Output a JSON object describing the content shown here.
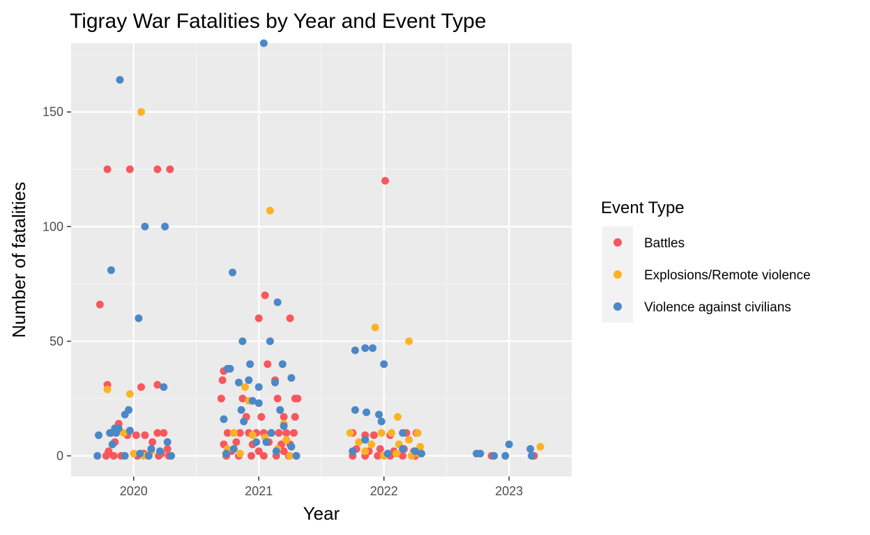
{
  "chart_data": {
    "type": "scatter",
    "title": "Tigray War Fatalities by Year and Event Type",
    "xlabel": "Year",
    "ylabel": "Number of fatalities",
    "x_categories": [
      "2020",
      "2021",
      "2022",
      "2023"
    ],
    "xlim": [
      2019.5,
      2023.5
    ],
    "ylim": [
      -9,
      180
    ],
    "y_ticks": [
      0,
      50,
      100,
      150
    ],
    "grid": true,
    "jitter": "horizontal jitter around each year",
    "legend": {
      "title": "Event Type",
      "position": "right"
    },
    "series": [
      {
        "name": "Battles",
        "color": "#F8575D",
        "points": [
          [
            2019.79,
            125
          ],
          [
            2019.97,
            125
          ],
          [
            2020.19,
            125
          ],
          [
            2020.29,
            125
          ],
          [
            2019.73,
            66
          ],
          [
            2019.79,
            31
          ],
          [
            2020.19,
            31
          ],
          [
            2020.06,
            30
          ],
          [
            2019.85,
            6
          ],
          [
            2019.88,
            14
          ],
          [
            2019.95,
            9
          ],
          [
            2020.02,
            9
          ],
          [
            2020.09,
            9
          ],
          [
            2020.15,
            6
          ],
          [
            2020.19,
            10
          ],
          [
            2020.24,
            10
          ],
          [
            2019.82,
            10
          ],
          [
            2020.27,
            3
          ],
          [
            2019.78,
            0
          ],
          [
            2019.84,
            0
          ],
          [
            2019.9,
            0
          ],
          [
            2020.03,
            0
          ],
          [
            2020.12,
            0
          ],
          [
            2020.2,
            0
          ],
          [
            2020.28,
            0
          ],
          [
            2019.8,
            2
          ],
          [
            2020.08,
            1
          ],
          [
            2020.22,
            1
          ],
          [
            2021.05,
            70
          ],
          [
            2021.0,
            60
          ],
          [
            2021.25,
            60
          ],
          [
            2021.07,
            40
          ],
          [
            2020.72,
            37
          ],
          [
            2020.71,
            33
          ],
          [
            2021.13,
            33
          ],
          [
            2020.7,
            25
          ],
          [
            2020.87,
            25
          ],
          [
            2021.15,
            25
          ],
          [
            2021.29,
            25
          ],
          [
            2021.31,
            25
          ],
          [
            2020.9,
            17
          ],
          [
            2021.02,
            17
          ],
          [
            2021.2,
            17
          ],
          [
            2021.29,
            17
          ],
          [
            2020.75,
            10
          ],
          [
            2020.8,
            10
          ],
          [
            2020.85,
            10
          ],
          [
            2020.92,
            10
          ],
          [
            2020.98,
            10
          ],
          [
            2021.04,
            10
          ],
          [
            2021.1,
            10
          ],
          [
            2021.16,
            10
          ],
          [
            2021.22,
            10
          ],
          [
            2021.28,
            10
          ],
          [
            2020.72,
            5
          ],
          [
            2020.82,
            6
          ],
          [
            2020.95,
            5
          ],
          [
            2021.08,
            6
          ],
          [
            2021.18,
            5
          ],
          [
            2021.25,
            5
          ],
          [
            2020.74,
            0
          ],
          [
            2020.84,
            0
          ],
          [
            2020.94,
            0
          ],
          [
            2021.04,
            0
          ],
          [
            2021.14,
            0
          ],
          [
            2021.24,
            0
          ],
          [
            2021.3,
            0
          ],
          [
            2020.78,
            2
          ],
          [
            2021.0,
            2
          ],
          [
            2021.2,
            2
          ],
          [
            2022.01,
            120
          ],
          [
            2021.75,
            10
          ],
          [
            2021.85,
            9
          ],
          [
            2021.92,
            9
          ],
          [
            2022.05,
            9
          ],
          [
            2022.18,
            10
          ],
          [
            2022.26,
            10
          ],
          [
            2021.78,
            3
          ],
          [
            2021.88,
            2
          ],
          [
            2021.97,
            3
          ],
          [
            2022.08,
            2
          ],
          [
            2022.16,
            3
          ],
          [
            2022.24,
            2
          ],
          [
            2021.75,
            0
          ],
          [
            2021.85,
            0
          ],
          [
            2021.95,
            0
          ],
          [
            2022.05,
            0
          ],
          [
            2022.15,
            0
          ],
          [
            2022.25,
            0
          ],
          [
            2023.2,
            0
          ],
          [
            2022.86,
            0
          ]
        ]
      },
      {
        "name": "Explosions/Remote violence",
        "color": "#FDB225",
        "points": [
          [
            2020.06,
            150
          ],
          [
            2019.79,
            29
          ],
          [
            2019.97,
            27
          ],
          [
            2019.92,
            10
          ],
          [
            2020.0,
            1
          ],
          [
            2020.08,
            0
          ],
          [
            2020.14,
            2
          ],
          [
            2021.09,
            107
          ],
          [
            2020.89,
            30
          ],
          [
            2020.92,
            24
          ],
          [
            2021.2,
            14
          ],
          [
            2020.8,
            10
          ],
          [
            2020.95,
            9
          ],
          [
            2021.05,
            8
          ],
          [
            2021.22,
            7
          ],
          [
            2020.75,
            3
          ],
          [
            2021.15,
            3
          ],
          [
            2020.85,
            1
          ],
          [
            2021.25,
            0
          ],
          [
            2021.93,
            56
          ],
          [
            2022.2,
            50
          ],
          [
            2022.11,
            17
          ],
          [
            2021.73,
            10
          ],
          [
            2021.8,
            6
          ],
          [
            2021.9,
            5
          ],
          [
            2021.98,
            10
          ],
          [
            2022.06,
            10
          ],
          [
            2022.12,
            5
          ],
          [
            2022.2,
            7
          ],
          [
            2022.27,
            10
          ],
          [
            2022.29,
            4
          ],
          [
            2021.85,
            2
          ],
          [
            2022.0,
            0
          ],
          [
            2022.1,
            1
          ],
          [
            2022.22,
            0
          ],
          [
            2022.28,
            1
          ],
          [
            2023.25,
            4
          ]
        ]
      },
      {
        "name": "Violence against civilians",
        "color": "#4A88C7",
        "points": [
          [
            2019.89,
            164
          ],
          [
            2020.09,
            100
          ],
          [
            2020.25,
            100
          ],
          [
            2019.82,
            81
          ],
          [
            2020.04,
            60
          ],
          [
            2020.24,
            30
          ],
          [
            2019.96,
            20
          ],
          [
            2019.93,
            18
          ],
          [
            2019.85,
            12
          ],
          [
            2019.88,
            12
          ],
          [
            2019.81,
            10
          ],
          [
            2019.86,
            10
          ],
          [
            2019.72,
            9
          ],
          [
            2019.97,
            11
          ],
          [
            2020.27,
            6
          ],
          [
            2019.83,
            5
          ],
          [
            2020.14,
            3
          ],
          [
            2020.21,
            2
          ],
          [
            2020.05,
            1
          ],
          [
            2019.71,
            0
          ],
          [
            2019.93,
            0
          ],
          [
            2020.12,
            0
          ],
          [
            2020.3,
            0
          ],
          [
            2021.04,
            180
          ],
          [
            2020.79,
            80
          ],
          [
            2021.15,
            67
          ],
          [
            2020.87,
            50
          ],
          [
            2021.09,
            50
          ],
          [
            2020.93,
            40
          ],
          [
            2021.19,
            40
          ],
          [
            2020.75,
            38
          ],
          [
            2020.77,
            38
          ],
          [
            2021.26,
            34
          ],
          [
            2020.92,
            33
          ],
          [
            2020.84,
            32
          ],
          [
            2021.13,
            32
          ],
          [
            2021.0,
            30
          ],
          [
            2020.95,
            24
          ],
          [
            2021.0,
            23
          ],
          [
            2021.17,
            20
          ],
          [
            2020.86,
            20
          ],
          [
            2020.72,
            16
          ],
          [
            2020.88,
            15
          ],
          [
            2021.2,
            13
          ],
          [
            2021.1,
            10
          ],
          [
            2020.98,
            6
          ],
          [
            2021.06,
            6
          ],
          [
            2021.26,
            4
          ],
          [
            2020.8,
            3
          ],
          [
            2021.14,
            2
          ],
          [
            2020.74,
            1
          ],
          [
            2021.3,
            0
          ],
          [
            2021.77,
            46
          ],
          [
            2021.85,
            47
          ],
          [
            2021.91,
            47
          ],
          [
            2022.0,
            40
          ],
          [
            2021.77,
            20
          ],
          [
            2021.86,
            19
          ],
          [
            2021.96,
            18
          ],
          [
            2021.98,
            15
          ],
          [
            2022.15,
            10
          ],
          [
            2021.85,
            7
          ],
          [
            2022.25,
            2
          ],
          [
            2021.75,
            2
          ],
          [
            2022.03,
            1
          ],
          [
            2022.15,
            3
          ],
          [
            2022.3,
            1
          ],
          [
            2023.0,
            5
          ],
          [
            2023.17,
            3
          ],
          [
            2022.74,
            1
          ],
          [
            2022.77,
            1
          ],
          [
            2022.88,
            0
          ],
          [
            2022.97,
            0
          ],
          [
            2023.18,
            0
          ]
        ]
      }
    ]
  }
}
